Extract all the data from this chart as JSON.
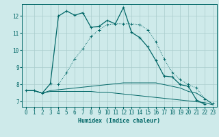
{
  "xlabel": "Humidex (Indice chaleur)",
  "bg_color": "#ceeaea",
  "grid_color": "#aacccc",
  "line_color": "#006666",
  "xlim": [
    -0.5,
    23.5
  ],
  "ylim": [
    6.7,
    12.7
  ],
  "yticks": [
    7,
    8,
    9,
    10,
    11,
    12
  ],
  "xticks": [
    0,
    1,
    2,
    3,
    4,
    5,
    6,
    7,
    8,
    9,
    10,
    11,
    12,
    13,
    14,
    15,
    16,
    17,
    18,
    19,
    20,
    21,
    22,
    23
  ],
  "line1_x": [
    0,
    1,
    2,
    3,
    4,
    5,
    6,
    7,
    8,
    9,
    10,
    11,
    12,
    13,
    14,
    15,
    16,
    17,
    18,
    19,
    20,
    21,
    22,
    23
  ],
  "line1_y": [
    7.65,
    7.65,
    7.5,
    8.05,
    12.0,
    12.3,
    12.05,
    12.2,
    11.35,
    11.4,
    11.75,
    11.55,
    12.5,
    11.05,
    10.75,
    10.2,
    9.4,
    8.5,
    8.45,
    8.0,
    7.9,
    7.1,
    6.85,
    null
  ],
  "line2_x": [
    0,
    1,
    2,
    3,
    4,
    5,
    6,
    7,
    8,
    9,
    10,
    11,
    12,
    13,
    14,
    15,
    16,
    17,
    18,
    19,
    20,
    21,
    22,
    23
  ],
  "line2_y": [
    null,
    null,
    null,
    null,
    8.0,
    8.7,
    9.5,
    10.1,
    10.8,
    11.2,
    11.5,
    11.55,
    11.55,
    11.55,
    11.5,
    11.2,
    10.5,
    9.5,
    8.7,
    8.3,
    8.0,
    7.8,
    7.15,
    6.9
  ],
  "line3_x": [
    0,
    1,
    2,
    3,
    4,
    5,
    6,
    7,
    8,
    9,
    10,
    11,
    12,
    13,
    14,
    15,
    16,
    17,
    18,
    19,
    20,
    21,
    22,
    23
  ],
  "line3_y": [
    7.65,
    7.65,
    7.5,
    7.65,
    7.7,
    7.75,
    7.8,
    7.85,
    7.9,
    7.95,
    8.0,
    8.05,
    8.1,
    8.1,
    8.1,
    8.1,
    8.1,
    8.0,
    7.9,
    7.8,
    7.6,
    7.5,
    7.2,
    6.85
  ],
  "line4_x": [
    0,
    1,
    2,
    3,
    4,
    5,
    6,
    7,
    8,
    9,
    10,
    11,
    12,
    13,
    14,
    15,
    16,
    17,
    18,
    19,
    20,
    21,
    22,
    23
  ],
  "line4_y": [
    7.65,
    7.65,
    7.5,
    7.6,
    7.6,
    7.6,
    7.6,
    7.6,
    7.6,
    7.55,
    7.55,
    7.5,
    7.45,
    7.4,
    7.35,
    7.3,
    7.25,
    7.2,
    7.15,
    7.1,
    7.05,
    7.0,
    6.95,
    6.82
  ]
}
